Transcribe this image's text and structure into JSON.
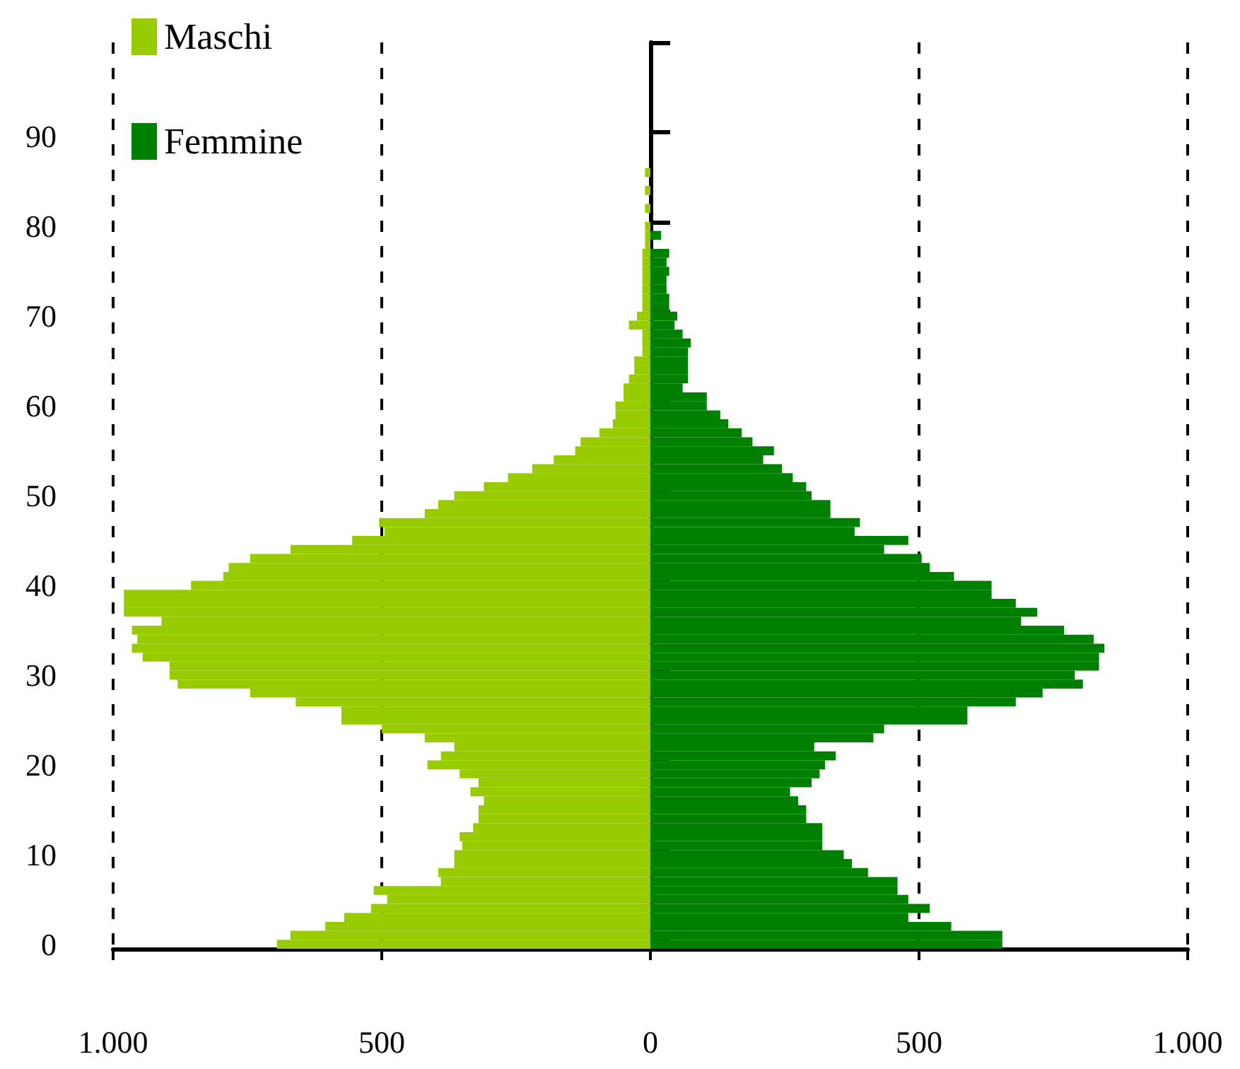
{
  "chart_data": {
    "type": "bar",
    "orientation": "horizontal",
    "stacked": true,
    "categories": [
      null,
      null,
      null,
      null,
      null,
      null,
      null,
      null,
      null,
      null,
      "90",
      null,
      null,
      null,
      null,
      null,
      null,
      null,
      null,
      null,
      "80",
      null,
      null,
      null,
      null,
      null,
      null,
      null,
      null,
      null,
      "70",
      null,
      null,
      null,
      null,
      null,
      null,
      null,
      null,
      null,
      "60",
      null,
      null,
      null,
      null,
      null,
      null,
      null,
      null,
      null,
      "50",
      null,
      null,
      null,
      null,
      null,
      null,
      null,
      null,
      null,
      "40",
      null,
      null,
      null,
      null,
      null,
      null,
      null,
      null,
      null,
      "30",
      null,
      null,
      null,
      null,
      null,
      null,
      null,
      null,
      null,
      "20",
      null,
      null,
      null,
      null,
      null,
      null,
      null,
      null,
      null,
      "10",
      null,
      null,
      null,
      null,
      null,
      null,
      null,
      null,
      null,
      "0"
    ],
    "series": [
      {
        "name": "Maschi",
        "color": "#99cc00",
        "values": [
          null,
          null,
          null,
          null,
          null,
          null,
          null,
          null,
          null,
          null,
          null,
          null,
          null,
          null,
          -10,
          null,
          -10,
          null,
          -10,
          null,
          -10,
          -10,
          -10,
          -15,
          -15,
          -15,
          -15,
          -15,
          -15,
          -15,
          -25,
          -40,
          -15,
          -15,
          -15,
          -30,
          -30,
          -40,
          -50,
          -50,
          -65,
          -65,
          -70,
          -95,
          -130,
          -140,
          -180,
          -220,
          -265,
          -310,
          -365,
          -395,
          -420,
          -505,
          -495,
          -555,
          -670,
          -745,
          -785,
          -795,
          -855,
          -980,
          -980,
          -980,
          -910,
          -965,
          -955,
          -965,
          -945,
          -895,
          -895,
          -880,
          -745,
          -660,
          -575,
          -575,
          -500,
          -420,
          -365,
          -390,
          -415,
          -355,
          -320,
          -335,
          -310,
          -320,
          -320,
          -330,
          -355,
          -350,
          -365,
          -365,
          -395,
          -390,
          -515,
          -490,
          -520,
          -570,
          -605,
          -670,
          -695
        ]
      },
      {
        "name": "Femmine",
        "color": "#008000",
        "values": [
          null,
          null,
          null,
          null,
          null,
          null,
          null,
          null,
          null,
          null,
          null,
          null,
          null,
          null,
          null,
          null,
          null,
          null,
          null,
          null,
          null,
          20,
          null,
          35,
          30,
          35,
          30,
          30,
          35,
          35,
          50,
          45,
          60,
          75,
          70,
          70,
          70,
          70,
          60,
          105,
          105,
          130,
          145,
          170,
          190,
          230,
          210,
          245,
          265,
          290,
          300,
          335,
          335,
          390,
          380,
          480,
          435,
          505,
          520,
          565,
          635,
          635,
          680,
          720,
          690,
          770,
          825,
          845,
          835,
          835,
          790,
          805,
          730,
          680,
          590,
          590,
          435,
          415,
          305,
          345,
          325,
          315,
          300,
          260,
          275,
          290,
          290,
          320,
          320,
          320,
          360,
          375,
          405,
          460,
          460,
          480,
          520,
          480,
          560,
          655,
          655
        ]
      }
    ],
    "xlim": [
      -1000,
      1000
    ],
    "xticks": [
      {
        "value": -1000,
        "label": "1.000"
      },
      {
        "value": -500,
        "label": "500"
      },
      0,
      500,
      {
        "value": 1000,
        "label": "1.000"
      }
    ],
    "grid": "x",
    "legend": "top left"
  }
}
